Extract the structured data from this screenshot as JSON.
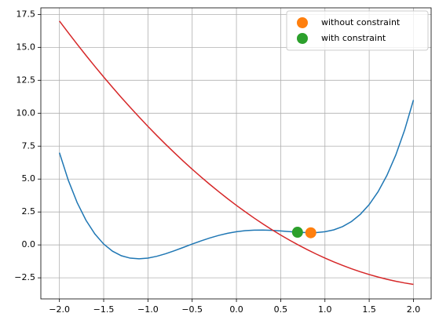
{
  "chart_data": {
    "type": "line",
    "x": [
      -2,
      -1.9,
      -1.8,
      -1.7,
      -1.6,
      -1.5,
      -1.4,
      -1.3,
      -1.2,
      -1.1,
      -1,
      -0.9,
      -0.8,
      -0.7,
      -0.6,
      -0.5,
      -0.4,
      -0.3,
      -0.2,
      -0.1,
      0,
      0.1,
      0.2,
      0.3,
      0.4,
      0.5,
      0.6,
      0.7,
      0.8,
      0.9,
      1,
      1.1,
      1.2,
      1.3,
      1.4,
      1.5,
      1.6,
      1.7,
      1.8,
      1.9,
      2
    ],
    "series": [
      {
        "type": "line",
        "color": "#1f77b4",
        "values": [
          7,
          4.912,
          3.218,
          1.872,
          0.834,
          0.063,
          -0.478,
          -0.824,
          -1.006,
          -1.056,
          -1,
          -0.864,
          -0.67,
          -0.44,
          -0.19,
          0.063,
          0.306,
          0.528,
          0.722,
          0.88,
          1,
          1.08,
          1.122,
          1.128,
          1.106,
          1.063,
          1.01,
          0.96,
          0.93,
          0.936,
          1,
          1.144,
          1.394,
          1.776,
          2.322,
          3.063,
          4.034,
          5.272,
          6.818,
          8.712,
          11
        ]
      },
      {
        "type": "line",
        "color": "#d62728",
        "values": [
          17,
          16.11,
          15.24,
          14.39,
          13.56,
          12.75,
          11.96,
          11.19,
          10.44,
          9.71,
          9,
          8.31,
          7.64,
          6.99,
          6.36,
          5.75,
          5.16,
          4.59,
          4.04,
          3.51,
          3,
          2.51,
          2.04,
          1.59,
          1.16,
          0.75,
          0.36,
          -0.01,
          -0.36,
          -0.69,
          -1,
          -1.29,
          -1.56,
          -1.81,
          -2.04,
          -2.25,
          -2.44,
          -2.61,
          -2.76,
          -2.89,
          -3
        ]
      },
      {
        "type": "scatter",
        "name": "without constraint",
        "color": "#ff7f0e",
        "x": [
          0.84
        ],
        "values": [
          0.92
        ]
      },
      {
        "type": "scatter",
        "name": "with constraint",
        "color": "#2ca02c",
        "x": [
          0.69
        ],
        "values": [
          0.96
        ]
      }
    ],
    "xlim": [
      -2.21,
      2.2
    ],
    "ylim": [
      -4.1,
      18.0
    ],
    "xticks": [
      {
        "value": -2,
        "label": "−2.0"
      },
      {
        "value": -1.5,
        "label": "−1.5"
      },
      {
        "value": -1,
        "label": "−1.0"
      },
      {
        "value": -0.5,
        "label": "−0.5"
      },
      {
        "value": 0,
        "label": "0.0"
      },
      0.5,
      {
        "value": 1,
        "label": "1.0"
      },
      1.5,
      {
        "value": 2,
        "label": "2.0"
      }
    ],
    "yticks": [
      {
        "value": -2.5,
        "label": "−2.5"
      },
      {
        "value": 0,
        "label": "0.0"
      },
      2.5,
      {
        "value": 5,
        "label": "5.0"
      },
      7.5,
      {
        "value": 10,
        "label": "10.0"
      },
      12.5,
      {
        "value": 15,
        "label": "15.0"
      },
      17.5
    ],
    "grid": true,
    "legend": "upper right"
  }
}
